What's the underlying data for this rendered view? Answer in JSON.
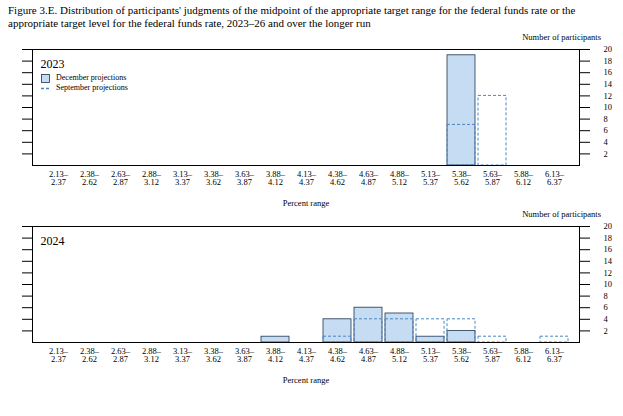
{
  "title": "Figure 3.E. Distribution of participants' judgments of the midpoint of the appropriate target range for the federal funds rate or the appropriate target level for the federal funds rate, 2023–26 and over the longer run",
  "chart_data": [
    {
      "type": "bar",
      "title": "2023",
      "xlabel": "Percent range",
      "ylabel": "Number of participants",
      "categories": [
        "2.13–2.37",
        "2.38–2.62",
        "2.63–2.87",
        "2.88–3.12",
        "3.13–3.37",
        "3.38–3.62",
        "3.63–3.87",
        "3.88–4.12",
        "4.13–4.37",
        "4.38–4.62",
        "4.63–4.87",
        "4.88–5.12",
        "5.13–5.37",
        "5.38–5.62",
        "5.63–5.87",
        "5.88–6.12",
        "6.13–6.37"
      ],
      "series": [
        {
          "name": "December projections",
          "color": "#c5dcf2",
          "values": [
            0,
            0,
            0,
            0,
            0,
            0,
            0,
            0,
            0,
            0,
            0,
            0,
            0,
            19,
            0,
            0,
            0
          ]
        },
        {
          "name": "September projections",
          "color": "#4a86c5",
          "line_style": "dashed",
          "values": [
            0,
            0,
            0,
            0,
            0,
            0,
            0,
            0,
            0,
            0,
            0,
            0,
            0,
            7,
            12,
            0,
            0
          ]
        }
      ],
      "ylim": [
        0,
        20
      ],
      "yticks": [
        2,
        4,
        6,
        8,
        10,
        12,
        14,
        16,
        18,
        20
      ],
      "legend": "top-left"
    },
    {
      "type": "bar",
      "title": "2024",
      "xlabel": "Percent range",
      "ylabel": "Number of participants",
      "categories": [
        "2.13–2.37",
        "2.38–2.62",
        "2.63–2.87",
        "2.88–3.12",
        "3.13–3.37",
        "3.38–3.62",
        "3.63–3.87",
        "3.88–4.12",
        "4.13–4.37",
        "4.38–4.62",
        "4.63–4.87",
        "4.88–5.12",
        "5.13–5.37",
        "5.38–5.62",
        "5.63–5.87",
        "5.88–6.12",
        "6.13–6.37"
      ],
      "series": [
        {
          "name": "December projections",
          "color": "#c5dcf2",
          "values": [
            0,
            0,
            0,
            0,
            0,
            0,
            0,
            1,
            0,
            4,
            6,
            5,
            1,
            2,
            0,
            0,
            0
          ]
        },
        {
          "name": "September projections",
          "color": "#4a86c5",
          "line_style": "dashed",
          "values": [
            0,
            0,
            0,
            0,
            0,
            0,
            0,
            0,
            0,
            1,
            4,
            4,
            4,
            4,
            1,
            0,
            1
          ]
        }
      ],
      "ylim": [
        0,
        20
      ],
      "yticks": [
        2,
        4,
        6,
        8,
        10,
        12,
        14,
        16,
        18,
        20
      ]
    }
  ]
}
